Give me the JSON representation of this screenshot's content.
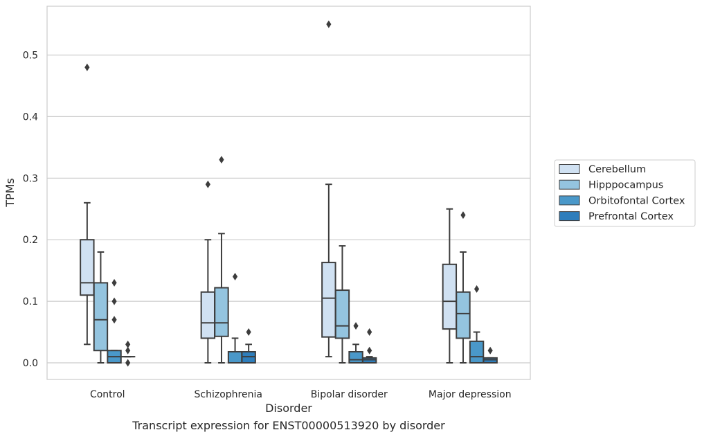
{
  "caption": "Transcript expression for ENST00000513920 by disorder",
  "chart_data": {
    "type": "boxplot",
    "xlabel": "Disorder",
    "ylabel": "TPMs",
    "ylim": [
      -0.027,
      0.581
    ],
    "yticks": [
      0.0,
      0.1,
      0.2,
      0.3,
      0.4,
      0.5
    ],
    "ytick_labels": [
      "0.0",
      "0.1",
      "0.2",
      "0.3",
      "0.4",
      "0.5"
    ],
    "grid": "horizontal",
    "legend_position": "right",
    "categories": [
      "Control",
      "Schizophrenia",
      "Bipolar disorder",
      "Major depression"
    ],
    "series": [
      {
        "name": "Cerebellum",
        "color": "#d0e1f2",
        "boxes": [
          {
            "whislo": 0.03,
            "q1": 0.11,
            "med": 0.13,
            "q3": 0.2,
            "whishi": 0.26,
            "fliers": [
              0.48
            ]
          },
          {
            "whislo": 0.0,
            "q1": 0.04,
            "med": 0.065,
            "q3": 0.115,
            "whishi": 0.2,
            "fliers": [
              0.29
            ]
          },
          {
            "whislo": 0.01,
            "q1": 0.042,
            "med": 0.105,
            "q3": 0.163,
            "whishi": 0.29,
            "fliers": [
              0.55
            ]
          },
          {
            "whislo": 0.0,
            "q1": 0.055,
            "med": 0.1,
            "q3": 0.16,
            "whishi": 0.25,
            "fliers": []
          }
        ]
      },
      {
        "name": "Hipppocampus",
        "color": "#94c4df",
        "boxes": [
          {
            "whislo": 0.0,
            "q1": 0.02,
            "med": 0.07,
            "q3": 0.13,
            "whishi": 0.18,
            "fliers": []
          },
          {
            "whislo": 0.0,
            "q1": 0.043,
            "med": 0.065,
            "q3": 0.122,
            "whishi": 0.21,
            "fliers": [
              0.33
            ]
          },
          {
            "whislo": 0.0,
            "q1": 0.04,
            "med": 0.06,
            "q3": 0.118,
            "whishi": 0.19,
            "fliers": []
          },
          {
            "whislo": 0.0,
            "q1": 0.04,
            "med": 0.08,
            "q3": 0.115,
            "whishi": 0.18,
            "fliers": [
              0.24
            ]
          }
        ]
      },
      {
        "name": "Orbitofontal Cortex",
        "color": "#4a98c9",
        "boxes": [
          {
            "whislo": 0.0,
            "q1": 0.0,
            "med": 0.01,
            "q3": 0.02,
            "whishi": 0.02,
            "fliers": [
              0.13,
              0.1,
              0.07
            ]
          },
          {
            "whislo": 0.0,
            "q1": 0.0,
            "med": 0.0,
            "q3": 0.018,
            "whishi": 0.04,
            "fliers": [
              0.14
            ]
          },
          {
            "whislo": 0.0,
            "q1": 0.0,
            "med": 0.005,
            "q3": 0.018,
            "whishi": 0.03,
            "fliers": [
              0.06
            ]
          },
          {
            "whislo": 0.0,
            "q1": 0.0,
            "med": 0.01,
            "q3": 0.035,
            "whishi": 0.05,
            "fliers": [
              0.12
            ]
          }
        ]
      },
      {
        "name": "Prefrontal Cortex",
        "color": "#2e7ebc",
        "boxes": [
          {
            "whislo": 0.01,
            "q1": 0.01,
            "med": 0.01,
            "q3": 0.01,
            "whishi": 0.01,
            "fliers": [
              0.03,
              0.02,
              0.0
            ]
          },
          {
            "whislo": 0.0,
            "q1": 0.0,
            "med": 0.01,
            "q3": 0.018,
            "whishi": 0.03,
            "fliers": [
              0.05
            ]
          },
          {
            "whislo": 0.0,
            "q1": 0.0,
            "med": 0.005,
            "q3": 0.008,
            "whishi": 0.01,
            "fliers": [
              0.05,
              0.02
            ]
          },
          {
            "whislo": 0.0,
            "q1": 0.0,
            "med": 0.005,
            "q3": 0.008,
            "whishi": 0.008,
            "fliers": [
              0.02
            ]
          }
        ]
      }
    ]
  }
}
